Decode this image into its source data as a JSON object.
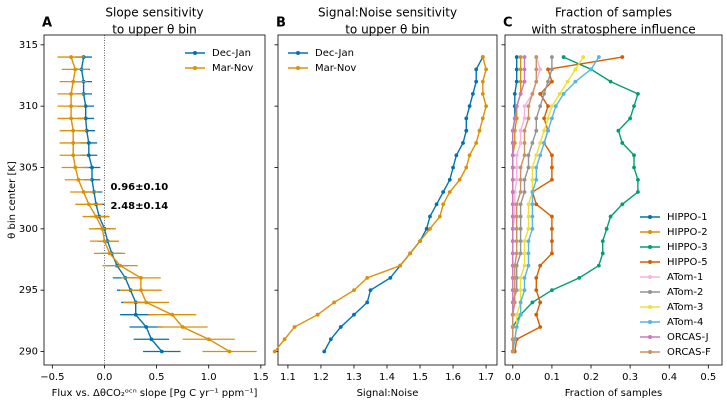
{
  "chart_data": [
    {
      "type": "line",
      "panel_label": "A",
      "title": [
        "Slope sensitivity",
        "to upper θ bin"
      ],
      "xlabel": "Flux vs. ΔθCO₂ᵒᶜⁿ slope [Pg C yr⁻¹ ppm⁻¹]",
      "ylabel": "θ bin center [K]",
      "xlim": [
        -0.58,
        1.54
      ],
      "ylim": [
        288.9,
        315.8
      ],
      "xticks": [
        {
          "value": -0.5,
          "label": "−0.5"
        },
        {
          "value": 0,
          "label": "0.0"
        },
        {
          "value": 0.5,
          "label": "0.5"
        },
        {
          "value": 1,
          "label": "1.0"
        },
        {
          "value": 1.5,
          "label": "1.5"
        }
      ],
      "yticks": [
        290,
        295,
        300,
        305,
        310,
        315
      ],
      "legend": "upper right",
      "annotations": [
        {
          "text": "0.96±0.10",
          "color": "#0173b2"
        },
        {
          "text": "2.48±0.14",
          "color": "#de8f05"
        }
      ],
      "y": [
        290,
        291,
        292,
        293,
        294,
        295,
        296,
        297,
        298,
        299,
        300,
        301,
        302,
        303,
        304,
        305,
        306,
        307,
        308,
        309,
        310,
        311,
        312,
        313,
        314
      ],
      "series": [
        {
          "name": "Dec-Jan",
          "color": "#0173b2",
          "values": [
            0.55,
            0.45,
            0.4,
            0.3,
            0.3,
            0.25,
            0.2,
            0.12,
            0.07,
            0.03,
            0.0,
            -0.05,
            -0.08,
            -0.1,
            -0.12,
            -0.12,
            -0.15,
            -0.15,
            -0.17,
            -0.18,
            -0.18,
            -0.2,
            -0.2,
            -0.22,
            -0.2
          ],
          "errors": [
            0.18,
            0.17,
            0.16,
            0.15,
            0.14,
            0.13,
            0.12,
            0.11,
            0.1,
            0.1,
            0.09,
            0.09,
            0.08,
            0.08,
            0.08,
            0.08,
            0.08,
            0.08,
            0.08,
            0.08,
            0.08,
            0.08,
            0.08,
            0.08,
            0.08
          ]
        },
        {
          "name": "Mar-Nov",
          "color": "#de8f05",
          "values": [
            1.2,
            1.0,
            0.75,
            0.65,
            0.4,
            0.35,
            0.35,
            0.15,
            0.05,
            0.0,
            -0.02,
            -0.08,
            -0.15,
            -0.2,
            -0.25,
            -0.28,
            -0.3,
            -0.3,
            -0.3,
            -0.32,
            -0.32,
            -0.32,
            -0.3,
            -0.28,
            -0.32
          ],
          "errors": [
            0.26,
            0.25,
            0.24,
            0.23,
            0.22,
            0.2,
            0.19,
            0.17,
            0.15,
            0.14,
            0.13,
            0.13,
            0.13,
            0.13,
            0.13,
            0.13,
            0.13,
            0.13,
            0.13,
            0.13,
            0.13,
            0.13,
            0.13,
            0.13,
            0.13
          ]
        }
      ]
    },
    {
      "type": "line",
      "panel_label": "B",
      "title": [
        "Signal:Noise sensitivity",
        "to upper θ bin"
      ],
      "xlabel": "Signal:Noise",
      "xlim": [
        1.07,
        1.733
      ],
      "ylim": [
        288.9,
        315.8
      ],
      "xticks": [
        1.1,
        1.2,
        1.3,
        1.4,
        1.5,
        1.6,
        1.7
      ],
      "legend": "upper left",
      "y": [
        290,
        291,
        292,
        293,
        294,
        295,
        296,
        297,
        298,
        299,
        300,
        301,
        302,
        303,
        304,
        305,
        306,
        307,
        308,
        309,
        310,
        311,
        312,
        313,
        314
      ],
      "series": [
        {
          "name": "Dec-Jan",
          "color": "#0173b2",
          "values": [
            1.21,
            1.23,
            1.26,
            1.3,
            1.34,
            1.35,
            1.41,
            1.44,
            1.47,
            1.5,
            1.52,
            1.53,
            1.55,
            1.57,
            1.59,
            1.6,
            1.61,
            1.63,
            1.64,
            1.64,
            1.65,
            1.66,
            1.67,
            1.67,
            1.69
          ]
        },
        {
          "name": "Mar-Nov",
          "color": "#de8f05",
          "values": [
            1.06,
            1.09,
            1.12,
            1.19,
            1.24,
            1.3,
            1.34,
            1.44,
            1.47,
            1.5,
            1.53,
            1.56,
            1.57,
            1.59,
            1.62,
            1.64,
            1.65,
            1.67,
            1.68,
            1.69,
            1.7,
            1.69,
            1.69,
            1.7,
            1.69
          ]
        }
      ]
    },
    {
      "type": "line",
      "panel_label": "C",
      "title": [
        "Fraction of samples",
        "with stratosphere influence"
      ],
      "xlabel": "Fraction of samples",
      "xlim": [
        -0.02,
        0.535
      ],
      "ylim": [
        288.9,
        315.8
      ],
      "xticks": [
        {
          "value": 0,
          "label": "0.0"
        },
        0.1,
        0.2,
        0.3,
        0.4,
        0.5
      ],
      "legend": "lower right",
      "y": [
        290,
        291,
        292,
        293,
        294,
        295,
        296,
        297,
        298,
        299,
        300,
        301,
        302,
        303,
        304,
        305,
        306,
        307,
        308,
        309,
        310,
        311,
        312,
        313,
        314
      ],
      "series": [
        {
          "name": "HIPPO-1",
          "color": "#0173b2",
          "values": [
            0,
            0,
            0,
            0,
            0,
            0,
            0,
            0,
            0,
            0,
            0,
            0,
            0,
            0,
            0,
            0,
            0,
            0,
            0,
            0.005,
            0.005,
            0.005,
            0.01,
            0.01,
            0.01
          ]
        },
        {
          "name": "HIPPO-2",
          "color": "#de8f05",
          "values": [
            0,
            0,
            0,
            0,
            0,
            0,
            0,
            0,
            0,
            0,
            0,
            0,
            0,
            0,
            0,
            0,
            0,
            0.005,
            0.005,
            0.01,
            0.01,
            0.02,
            0.02,
            0.02,
            0.02
          ]
        },
        {
          "name": "HIPPO-3",
          "color": "#029e73",
          "values": [
            0,
            0,
            0,
            0.02,
            0.05,
            0.1,
            0.17,
            0.22,
            0.23,
            0.23,
            0.24,
            0.25,
            0.28,
            0.32,
            0.32,
            0.31,
            0.31,
            0.28,
            0.27,
            0.3,
            0.31,
            0.32,
            0.25,
            0.2,
            0.13
          ]
        },
        {
          "name": "HIPPO-5",
          "color": "#d55e00",
          "values": [
            0.005,
            0.01,
            0.07,
            0.06,
            0.07,
            0.06,
            0.06,
            0.07,
            0.1,
            0.1,
            0.1,
            0.1,
            0.06,
            0.05,
            0.1,
            0.1,
            0.1,
            0.08,
            0.09,
            0.08,
            0.09,
            0.07,
            0.1,
            0.09,
            0.28
          ]
        },
        {
          "name": "ATom-1",
          "color": "#fbafe4",
          "values": [
            0,
            0,
            0,
            0,
            0,
            0,
            0,
            0,
            0,
            0,
            0,
            0.005,
            0.005,
            0.005,
            0.01,
            0.01,
            0.01,
            0.02,
            0.02,
            0.03,
            0.03,
            0.05,
            0.06,
            0.07,
            0.06
          ]
        },
        {
          "name": "ATom-2",
          "color": "#949494",
          "values": [
            0,
            0,
            0,
            0,
            0,
            0.01,
            0.01,
            0.01,
            0.02,
            0.02,
            0.02,
            0.02,
            0.02,
            0.03,
            0.03,
            0.04,
            0.04,
            0.05,
            0.06,
            0.06,
            0.07,
            0.08,
            0.09,
            0.1,
            0.1
          ]
        },
        {
          "name": "ATom-3",
          "color": "#ece133",
          "values": [
            0,
            0.005,
            0.01,
            0.01,
            0.02,
            0.02,
            0.02,
            0.03,
            0.03,
            0.03,
            0.04,
            0.04,
            0.04,
            0.05,
            0.05,
            0.05,
            0.06,
            0.07,
            0.08,
            0.09,
            0.1,
            0.12,
            0.14,
            0.16,
            0.18
          ]
        },
        {
          "name": "ATom-4",
          "color": "#56b4e9",
          "values": [
            0,
            0.005,
            0.01,
            0.02,
            0.02,
            0.03,
            0.03,
            0.04,
            0.04,
            0.04,
            0.05,
            0.05,
            0.05,
            0.05,
            0.06,
            0.06,
            0.07,
            0.08,
            0.09,
            0.1,
            0.11,
            0.13,
            0.16,
            0.2,
            0.22
          ]
        },
        {
          "name": "ORCAS-J",
          "color": "#cc78bc",
          "values": [
            0,
            0,
            0,
            0,
            0,
            0,
            0,
            0,
            0,
            0,
            0,
            0,
            0,
            0,
            0,
            0,
            0,
            0,
            0,
            0.005,
            0.01,
            0.02,
            0.03,
            0.03,
            0.03
          ]
        },
        {
          "name": "ORCAS-F",
          "color": "#ca9161",
          "values": [
            0,
            0,
            0,
            0,
            0.005,
            0.005,
            0.005,
            0.005,
            0.01,
            0.01,
            0.01,
            0.01,
            0.01,
            0.02,
            0.02,
            0.02,
            0.03,
            0.03,
            0.03,
            0.04,
            0.04,
            0.05,
            0.06,
            0.06,
            0.06
          ]
        }
      ]
    }
  ]
}
